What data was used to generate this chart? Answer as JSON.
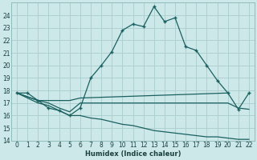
{
  "xlabel": "Humidex (Indice chaleur)",
  "bg_color": "#cde8e8",
  "grid_color": "#aed0d0",
  "line_color": "#1a6060",
  "ylim": [
    14,
    25
  ],
  "xlim": [
    -0.5,
    22.5
  ],
  "yticks": [
    14,
    15,
    16,
    17,
    18,
    19,
    20,
    21,
    22,
    23,
    24
  ],
  "xticks": [
    0,
    1,
    2,
    3,
    4,
    5,
    6,
    7,
    8,
    9,
    10,
    11,
    12,
    13,
    14,
    15,
    16,
    17,
    18,
    19,
    20,
    21,
    22
  ],
  "series1_x": [
    0,
    1,
    2,
    3,
    4,
    5,
    6,
    7,
    8,
    9,
    10,
    11,
    12,
    13,
    14,
    15,
    16,
    17,
    18,
    19,
    20,
    21,
    22
  ],
  "series1_y": [
    17.8,
    17.8,
    17.2,
    16.6,
    16.4,
    16.0,
    16.6,
    19.0,
    20.0,
    21.1,
    22.8,
    23.3,
    23.1,
    24.7,
    23.5,
    23.8,
    21.5,
    21.2,
    20.0,
    18.8,
    17.8,
    16.5,
    17.8
  ],
  "series2_x": [
    0,
    2,
    3,
    4,
    5,
    6,
    20
  ],
  "series2_y": [
    17.8,
    17.2,
    17.2,
    17.2,
    17.2,
    17.4,
    17.8
  ],
  "series3_x": [
    0,
    2,
    3,
    4,
    5,
    6,
    20,
    21,
    22
  ],
  "series3_y": [
    17.8,
    17.2,
    17.0,
    16.6,
    16.3,
    17.0,
    17.0,
    16.6,
    16.5
  ],
  "series4_x": [
    0,
    2,
    3,
    4,
    5,
    6,
    7,
    8,
    9,
    10,
    11,
    12,
    13,
    14,
    15,
    16,
    17,
    18,
    19,
    20,
    21,
    22
  ],
  "series4_y": [
    17.8,
    17.0,
    16.8,
    16.4,
    16.0,
    16.0,
    15.8,
    15.7,
    15.5,
    15.3,
    15.2,
    15.0,
    14.8,
    14.7,
    14.6,
    14.5,
    14.4,
    14.3,
    14.3,
    14.2,
    14.1,
    14.1
  ]
}
